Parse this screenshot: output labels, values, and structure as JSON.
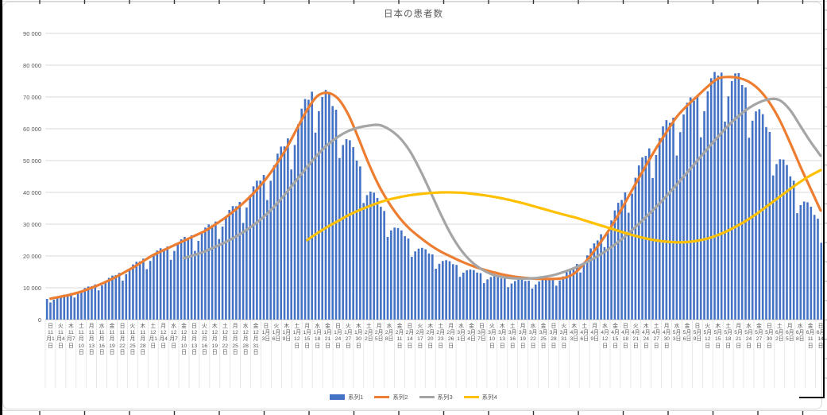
{
  "chart_data": {
    "type": "combo",
    "title": "日本の患者数",
    "legend_position": "bottom",
    "grid": "horizontal",
    "y_axis": {
      "min": 0,
      "max": 90000,
      "step": 10000,
      "tick_labels": [
        "0",
        "10 000",
        "20 000",
        "30 000",
        "40 000",
        "50 000",
        "60 000",
        "70 000",
        "80 000",
        "90 000"
      ]
    },
    "x_axis_note": "daily bars Nov 1 - Jun 14, labels every 3 days, weekday shown above date",
    "weekdays": [
      "日",
      "火",
      "木",
      "土",
      "月",
      "水",
      "金",
      "日",
      "火",
      "木",
      "土",
      "月",
      "水",
      "金",
      "日",
      "火",
      "木",
      "土",
      "月",
      "水",
      "金",
      "日",
      "火",
      "木",
      "土",
      "月",
      "水",
      "金",
      "日",
      "火",
      "木",
      "土",
      "月",
      "水",
      "金",
      "日",
      "火",
      "木",
      "土",
      "月",
      "水",
      "金",
      "日",
      "火",
      "木",
      "土",
      "月",
      "水",
      "金",
      "日",
      "火",
      "木",
      "土",
      "月",
      "水",
      "金",
      "日",
      "火",
      "木",
      "土",
      "月",
      "水",
      "金",
      "日",
      "火",
      "木",
      "土",
      "月",
      "水",
      "金",
      "日",
      "土",
      "月",
      "水",
      "金",
      "日"
    ],
    "categories": [
      "11月1日",
      "11月4日",
      "11月7日",
      "11月10日",
      "11月13日",
      "11月16日",
      "11月19日",
      "11月22日",
      "11月25日",
      "11月28日",
      "12月1日",
      "12月4日",
      "12月7日",
      "12月10日",
      "12月13日",
      "12月16日",
      "12月19日",
      "12月22日",
      "12月25日",
      "12月28日",
      "12月31日",
      "1月3日",
      "1月6日",
      "1月9日",
      "1月12日",
      "1月15日",
      "1月18日",
      "1月21日",
      "1月24日",
      "1月27日",
      "1月30日",
      "2月2日",
      "2月5日",
      "2月8日",
      "2月11日",
      "2月14日",
      "2月17日",
      "2月20日",
      "2月23日",
      "2月26日",
      "3月1日",
      "3月4日",
      "3月7日",
      "3月10日",
      "3月13日",
      "3月16日",
      "3月19日",
      "3月22日",
      "3月25日",
      "3月28日",
      "3月31日",
      "4月3日",
      "4月6日",
      "4月9日",
      "4月12日",
      "4月15日",
      "4月18日",
      "4月21日",
      "4月24日",
      "4月27日",
      "4月30日",
      "5月3日",
      "5月6日",
      "5月9日",
      "5月12日",
      "5月15日",
      "5月18日",
      "5月21日",
      "5月24日",
      "5月27日",
      "5月30日",
      "6月2日",
      "6月5日",
      "6月8日",
      "6月11日",
      "6月14日"
    ],
    "series": [
      {
        "name": "系列1",
        "type": "bar",
        "color": "#4472C4",
        "values": [
          6500,
          7200,
          8000,
          9000,
          10200,
          11500,
          13000,
          14700,
          16500,
          18500,
          20500,
          22000,
          23500,
          25000,
          26500,
          28000,
          30000,
          32500,
          35000,
          38000,
          41500,
          45500,
          50000,
          55000,
          61000,
          68000,
          73500,
          71500,
          66000,
          58500,
          50500,
          43500,
          37500,
          32500,
          28500,
          25500,
          23000,
          21000,
          19500,
          18000,
          16800,
          15600,
          14600,
          13800,
          13100,
          12600,
          12300,
          12200,
          12400,
          13000,
          14000,
          16500,
          19500,
          23500,
          28500,
          34000,
          40000,
          46000,
          52000,
          57500,
          61500,
          64500,
          67500,
          70500,
          74000,
          77500,
          78000,
          76000,
          71500,
          65500,
          59000,
          52000,
          45500,
          40000,
          34800,
          30200
        ]
      },
      {
        "name": "系列2",
        "type": "line",
        "color": "#ED7D31",
        "values": [
          6600,
          7200,
          7900,
          8800,
          10000,
          11300,
          12800,
          14500,
          16300,
          18300,
          20300,
          21800,
          23300,
          24800,
          26300,
          27800,
          29800,
          32000,
          34500,
          37300,
          40500,
          44300,
          48800,
          54000,
          60000,
          66000,
          70300,
          71300,
          69500,
          64500,
          57000,
          49000,
          42000,
          36500,
          32000,
          28500,
          25800,
          23400,
          21400,
          19800,
          18300,
          17000,
          15900,
          15000,
          14200,
          13600,
          13200,
          12900,
          12800,
          12800,
          13100,
          14500,
          17800,
          21800,
          26300,
          31300,
          37000,
          42800,
          48500,
          54000,
          59000,
          63800,
          67300,
          70300,
          73300,
          75800,
          76300,
          76000,
          74800,
          72300,
          68300,
          62800,
          55800,
          48300,
          41300,
          34300
        ]
      },
      {
        "name": "系列3",
        "type": "line",
        "color": "#A5A5A5",
        "values": [
          null,
          null,
          null,
          null,
          null,
          null,
          null,
          null,
          null,
          null,
          null,
          null,
          null,
          19300,
          20300,
          21400,
          22800,
          24300,
          26000,
          28000,
          30300,
          33000,
          36300,
          40000,
          44000,
          48000,
          51800,
          55000,
          57500,
          59300,
          60400,
          61000,
          61200,
          59800,
          57200,
          53000,
          47000,
          40200,
          33200,
          26800,
          21800,
          18200,
          15800,
          14200,
          13400,
          13000,
          12900,
          13000,
          13400,
          14000,
          15000,
          16200,
          17700,
          19400,
          21400,
          23700,
          26300,
          29200,
          32300,
          35500,
          38900,
          42500,
          46300,
          50000,
          53800,
          57500,
          61000,
          64000,
          66500,
          68300,
          69300,
          69000,
          66000,
          61000,
          56000,
          51500
        ]
      },
      {
        "name": "系列4",
        "type": "line",
        "color": "#FFC000",
        "values": [
          null,
          null,
          null,
          null,
          null,
          null,
          null,
          null,
          null,
          null,
          null,
          null,
          null,
          null,
          null,
          null,
          null,
          null,
          null,
          null,
          null,
          null,
          null,
          null,
          null,
          25000,
          27200,
          29200,
          31000,
          32800,
          34300,
          35600,
          36800,
          37800,
          38500,
          39100,
          39500,
          39800,
          40000,
          40000,
          39900,
          39600,
          39200,
          38700,
          38100,
          37400,
          36600,
          35700,
          34800,
          33900,
          33000,
          32200,
          31200,
          30200,
          29200,
          28200,
          27200,
          26300,
          25500,
          24900,
          24500,
          24300,
          24400,
          24800,
          25500,
          26600,
          28000,
          29700,
          31600,
          33800,
          36200,
          38600,
          41000,
          43300,
          45300,
          47000
        ]
      }
    ],
    "bar_weekly_pattern": [
      1.0,
      0.8,
      0.9,
      0.97,
      1.01,
      1.02,
      0.99
    ],
    "colors": {
      "bars": "#4472C4",
      "line2": "#ED7D31",
      "line3": "#A5A5A5",
      "line4": "#FFC000",
      "gridline": "#d9d9d9",
      "axis_text": "#595959",
      "background": "#ffffff"
    }
  }
}
